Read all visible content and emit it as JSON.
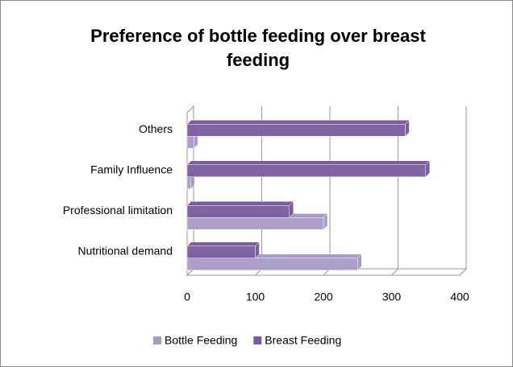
{
  "chart_data": {
    "type": "bar",
    "orientation": "horizontal",
    "title": "Preference of bottle feeding over breast feeding",
    "categories": [
      "Nutritional demand",
      "Professional limitation",
      "Family Influence",
      "Others"
    ],
    "series": [
      {
        "name": "Bottle Feeding",
        "color": "#a99bc9",
        "values": [
          250,
          200,
          5,
          10
        ]
      },
      {
        "name": "Breast Feeding",
        "color": "#7b5d9e",
        "values": [
          100,
          150,
          350,
          320
        ]
      }
    ],
    "xlim": [
      0,
      400
    ],
    "xticks": [
      0,
      100,
      200,
      300,
      400
    ],
    "grid": true,
    "legend": "bottom"
  }
}
